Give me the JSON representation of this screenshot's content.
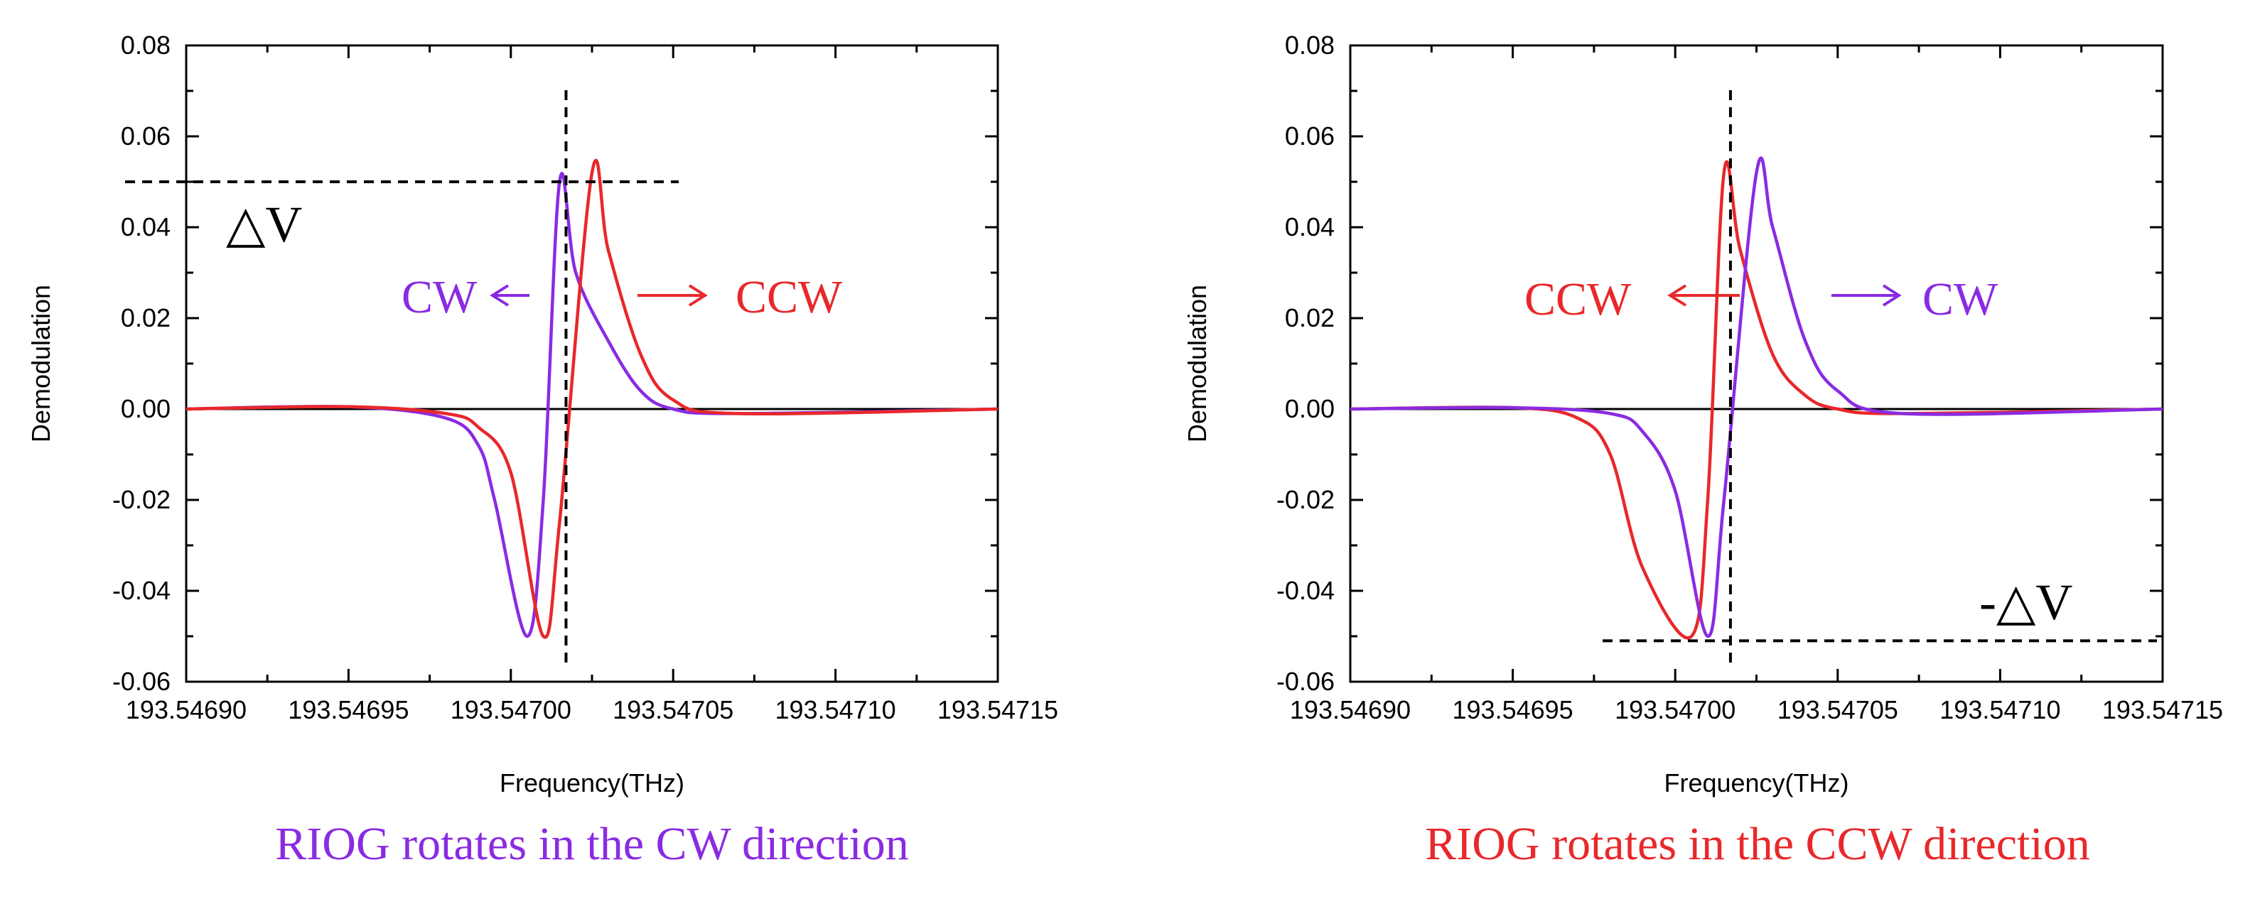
{
  "colors": {
    "cw": "#8A2BE2",
    "ccw": "#E8282B",
    "axis": "#000000"
  },
  "chart_data": [
    {
      "type": "line",
      "xlabel": "Frequency(THz)",
      "ylabel": "Demodulation",
      "xlim": [
        193.5469,
        193.54715
      ],
      "ylim": [
        -0.06,
        0.08
      ],
      "xticks": [
        "193.54690",
        "193.54695",
        "193.54700",
        "193.54705",
        "193.54710",
        "193.54715"
      ],
      "yticks": [
        "0.08",
        "0.06",
        "0.04",
        "0.02",
        "0.00",
        "-0.02",
        "-0.04",
        "-0.06"
      ],
      "x_zero_line": 0,
      "vertical_marker_x": 193.547017,
      "horizontal_marker_y": 0.05,
      "delta_label": "△V",
      "arrow_left_label": "CW",
      "arrow_right_label": "CCW",
      "caption": "RIOG rotates in the CW direction",
      "series": [
        {
          "name": "CW",
          "color": "#8A2BE2",
          "x": [
            193.5469,
            193.54695,
            193.54698,
            193.54699,
            193.546995,
            193.547005,
            193.54701,
            193.547015,
            193.54702,
            193.54703,
            193.54704,
            193.54705,
            193.54707,
            193.54715
          ],
          "y": [
            0.0,
            0.0005,
            -0.002,
            -0.008,
            -0.02,
            -0.05,
            -0.02,
            0.05,
            0.03,
            0.015,
            0.004,
            0.0,
            -0.001,
            0.0
          ]
        },
        {
          "name": "CCW",
          "color": "#E8282B",
          "x": [
            193.5469,
            193.54695,
            193.54698,
            193.54699,
            193.547,
            193.54701,
            193.547015,
            193.547025,
            193.54703,
            193.54704,
            193.54705,
            193.54707,
            193.54715
          ],
          "y": [
            0.0,
            0.0005,
            -0.001,
            -0.004,
            -0.014,
            -0.05,
            -0.025,
            0.052,
            0.035,
            0.012,
            0.002,
            -0.001,
            0.0
          ]
        }
      ]
    },
    {
      "type": "line",
      "xlabel": "Frequency(THz)",
      "ylabel": "Demodulation",
      "xlim": [
        193.5469,
        193.54715
      ],
      "ylim": [
        -0.06,
        0.08
      ],
      "xticks": [
        "193.54690",
        "193.54695",
        "193.54700",
        "193.54705",
        "193.54710",
        "193.54715"
      ],
      "yticks": [
        "0.08",
        "0.06",
        "0.04",
        "0.02",
        "0.00",
        "-0.02",
        "-0.04",
        "-0.06"
      ],
      "x_zero_line": 0,
      "vertical_marker_x": 193.547017,
      "horizontal_marker_y": -0.051,
      "delta_label": "-△V",
      "arrow_left_label": "CCW",
      "arrow_right_label": "CW",
      "caption": "RIOG rotates in the CCW direction",
      "series": [
        {
          "name": "CCW",
          "color": "#E8282B",
          "x": [
            193.5469,
            193.54695,
            193.54697,
            193.54698,
            193.54699,
            193.547005,
            193.54701,
            193.547015,
            193.54702,
            193.54703,
            193.54704,
            193.54705,
            193.54707,
            193.54715
          ],
          "y": [
            0.0,
            0.0003,
            -0.002,
            -0.01,
            -0.035,
            -0.05,
            -0.02,
            0.052,
            0.035,
            0.012,
            0.003,
            0.0,
            -0.001,
            0.0
          ]
        },
        {
          "name": "CW",
          "color": "#8A2BE2",
          "x": [
            193.5469,
            193.54695,
            193.54698,
            193.54699,
            193.547,
            193.54701,
            193.547015,
            193.547025,
            193.54703,
            193.54704,
            193.54705,
            193.54707,
            193.54715
          ],
          "y": [
            0.0,
            0.0003,
            -0.001,
            -0.005,
            -0.018,
            -0.05,
            -0.02,
            0.052,
            0.04,
            0.015,
            0.004,
            -0.001,
            0.0
          ]
        }
      ]
    }
  ]
}
